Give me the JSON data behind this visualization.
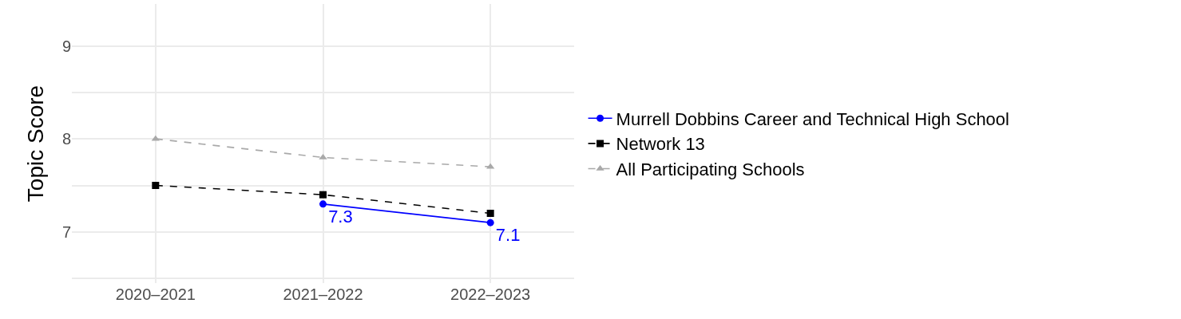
{
  "chart_data": {
    "type": "line",
    "ylabel": "Topic Score",
    "categories": [
      "2020–2021",
      "2021–2022",
      "2022–2023"
    ],
    "series": [
      {
        "name": "Murrell Dobbins Career and Technical High School",
        "color": "#0000ff",
        "values": [
          null,
          7.3,
          7.1
        ],
        "value_labels": [
          null,
          "7.3",
          "7.1"
        ],
        "marker": "circle",
        "line_style": "solid"
      },
      {
        "name": "Network 13",
        "color": "#000000",
        "values": [
          7.5,
          7.4,
          7.2
        ],
        "marker": "square",
        "line_style": "dashed"
      },
      {
        "name": "All Participating Schools",
        "color": "#a9a9a9",
        "values": [
          8.0,
          7.8,
          7.7
        ],
        "marker": "triangle",
        "line_style": "dashed"
      }
    ],
    "ylim": [
      6.45,
      9.45
    ],
    "yticks": [
      {
        "value": 6.5,
        "label": null
      },
      7,
      {
        "value": 7.5,
        "label": null
      },
      8,
      {
        "value": 8.5,
        "label": null
      },
      9
    ],
    "grid": true,
    "legend": "right"
  }
}
